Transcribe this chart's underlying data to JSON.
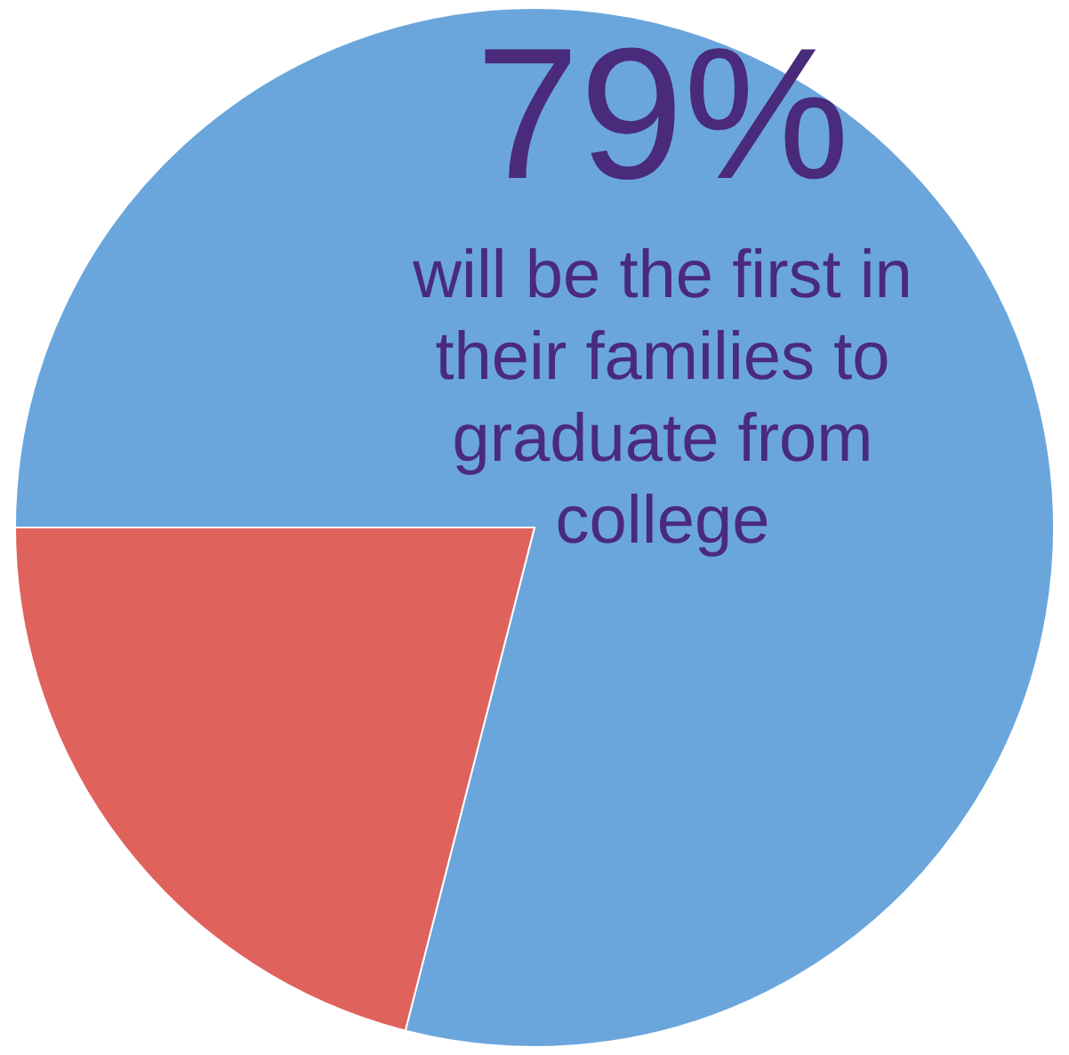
{
  "chart_data": {
    "type": "pie",
    "categories": [
      "will be the first in their families to graduate from college",
      null
    ],
    "values": [
      79,
      21
    ],
    "colors": [
      "#6aa6dc",
      "#e0625c"
    ],
    "value_labels": [
      "79%",
      null
    ]
  }
}
